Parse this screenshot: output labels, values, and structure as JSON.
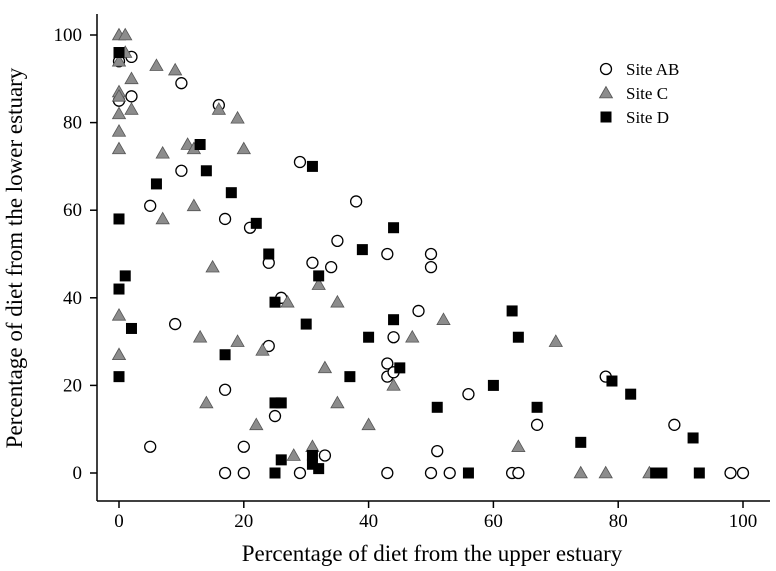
{
  "chart_data": {
    "type": "scatter",
    "title": "",
    "xlabel": "Percentage of diet from the upper estuary",
    "ylabel": "Percentage of diet from the lower estuary",
    "xlim": [
      -3,
      104
    ],
    "ylim": [
      -5,
      105
    ],
    "xticks": [
      0,
      20,
      40,
      60,
      80,
      100
    ],
    "yticks": [
      0,
      20,
      40,
      60,
      80,
      100
    ],
    "grid": false,
    "legend_position": "top-right",
    "series": [
      {
        "name": "Site AB",
        "marker": "circle-open",
        "color": "#000000",
        "points": [
          [
            0,
            94
          ],
          [
            0,
            85
          ],
          [
            2,
            95
          ],
          [
            2,
            86
          ],
          [
            10,
            89
          ],
          [
            16,
            84
          ],
          [
            5,
            61
          ],
          [
            10,
            69
          ],
          [
            17,
            58
          ],
          [
            21,
            56
          ],
          [
            24,
            48
          ],
          [
            26,
            40
          ],
          [
            29,
            71
          ],
          [
            31,
            48
          ],
          [
            34,
            47
          ],
          [
            35,
            53
          ],
          [
            38,
            62
          ],
          [
            43,
            50
          ],
          [
            43,
            25
          ],
          [
            43,
            22
          ],
          [
            44,
            23
          ],
          [
            44,
            31
          ],
          [
            48,
            37
          ],
          [
            50,
            47
          ],
          [
            50,
            50
          ],
          [
            9,
            34
          ],
          [
            24,
            29
          ],
          [
            17,
            19
          ],
          [
            5,
            6
          ],
          [
            20,
            6
          ],
          [
            25,
            13
          ],
          [
            33,
            4
          ],
          [
            17,
            0
          ],
          [
            20,
            0
          ],
          [
            29,
            0
          ],
          [
            43,
            0
          ],
          [
            50,
            0
          ],
          [
            51,
            5
          ],
          [
            53,
            0
          ],
          [
            56,
            18
          ],
          [
            63,
            0
          ],
          [
            64,
            0
          ],
          [
            67,
            11
          ],
          [
            78,
            22
          ],
          [
            89,
            11
          ],
          [
            98,
            0
          ],
          [
            100,
            0
          ]
        ]
      },
      {
        "name": "Site C",
        "marker": "triangle-filled",
        "color": "#8c8c8c",
        "points": [
          [
            0,
            100
          ],
          [
            1,
            100
          ],
          [
            1,
            96
          ],
          [
            0,
            94
          ],
          [
            2,
            90
          ],
          [
            0,
            87
          ],
          [
            0,
            86
          ],
          [
            2,
            83
          ],
          [
            0,
            82
          ],
          [
            0,
            78
          ],
          [
            0,
            74
          ],
          [
            6,
            93
          ],
          [
            9,
            92
          ],
          [
            11,
            75
          ],
          [
            12,
            74
          ],
          [
            16,
            83
          ],
          [
            19,
            81
          ],
          [
            20,
            74
          ],
          [
            7,
            73
          ],
          [
            7,
            58
          ],
          [
            12,
            61
          ],
          [
            15,
            47
          ],
          [
            0,
            36
          ],
          [
            13,
            31
          ],
          [
            19,
            30
          ],
          [
            23,
            28
          ],
          [
            0,
            27
          ],
          [
            14,
            16
          ],
          [
            22,
            11
          ],
          [
            27,
            39
          ],
          [
            32,
            43
          ],
          [
            35,
            39
          ],
          [
            33,
            24
          ],
          [
            35,
            16
          ],
          [
            40,
            11
          ],
          [
            44,
            20
          ],
          [
            47,
            31
          ],
          [
            52,
            35
          ],
          [
            64,
            6
          ],
          [
            70,
            30
          ],
          [
            28,
            4
          ],
          [
            31,
            6
          ],
          [
            74,
            0
          ],
          [
            78,
            0
          ],
          [
            85,
            0
          ]
        ]
      },
      {
        "name": "Site D",
        "marker": "square-filled",
        "color": "#000000",
        "points": [
          [
            0,
            96
          ],
          [
            13,
            75
          ],
          [
            14,
            69
          ],
          [
            6,
            66
          ],
          [
            18,
            64
          ],
          [
            0,
            58
          ],
          [
            22,
            57
          ],
          [
            24,
            50
          ],
          [
            25,
            39
          ],
          [
            31,
            70
          ],
          [
            32,
            45
          ],
          [
            30,
            34
          ],
          [
            1,
            45
          ],
          [
            0,
            42
          ],
          [
            2,
            33
          ],
          [
            17,
            27
          ],
          [
            0,
            22
          ],
          [
            39,
            51
          ],
          [
            44,
            56
          ],
          [
            44,
            35
          ],
          [
            40,
            31
          ],
          [
            45,
            24
          ],
          [
            37,
            22
          ],
          [
            51,
            15
          ],
          [
            60,
            20
          ],
          [
            63,
            37
          ],
          [
            64,
            31
          ],
          [
            67,
            15
          ],
          [
            74,
            7
          ],
          [
            79,
            21
          ],
          [
            82,
            18
          ],
          [
            25,
            16
          ],
          [
            26,
            16
          ],
          [
            92,
            8
          ],
          [
            26,
            3
          ],
          [
            31,
            4
          ],
          [
            31,
            2
          ],
          [
            32,
            1
          ],
          [
            25,
            0
          ],
          [
            56,
            0
          ],
          [
            86,
            0
          ],
          [
            87,
            0
          ],
          [
            93,
            0
          ]
        ]
      }
    ]
  }
}
